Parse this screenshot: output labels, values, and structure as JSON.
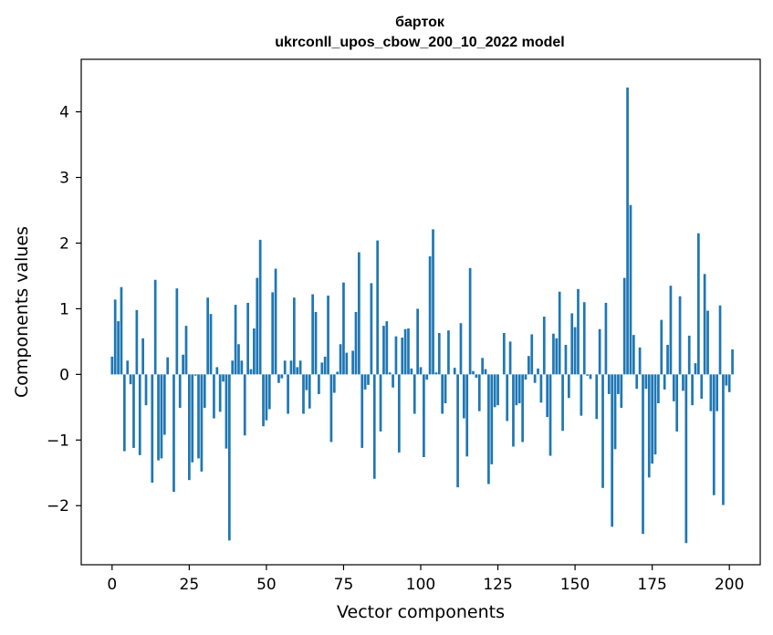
{
  "chart_data": {
    "type": "bar",
    "title": "бартокukrconll_upos_cbow_200_10_2022 model",
    "title_lines": [
      "барток",
      "ukrconll_upos_cbow_200_10_2022 model"
    ],
    "xlabel": "Vector components",
    "ylabel": "Components values",
    "xlim": [
      -10,
      210
    ],
    "ylim": [
      -2.9,
      4.8
    ],
    "xticks": [
      0,
      25,
      50,
      75,
      100,
      125,
      150,
      175,
      200
    ],
    "yticks": [
      -2,
      -1,
      0,
      1,
      2,
      3,
      4
    ],
    "ytick_labels": [
      "−2",
      "−1",
      "0",
      "1",
      "2",
      "3",
      "4"
    ],
    "bar_color": "#1f77b4",
    "grid": false,
    "values": [
      0.27,
      1.14,
      0.81,
      1.33,
      -1.17,
      0.21,
      -0.15,
      -1.12,
      0.98,
      -1.23,
      0.55,
      -0.47,
      0.0,
      -1.65,
      1.44,
      -1.31,
      -1.28,
      -0.92,
      0.26,
      0.0,
      -1.79,
      1.31,
      -0.51,
      0.3,
      0.74,
      -1.61,
      -1.34,
      -0.02,
      -1.28,
      -1.48,
      -0.51,
      1.17,
      0.92,
      -0.67,
      0.11,
      -0.57,
      -0.11,
      -1.13,
      -2.53,
      0.21,
      1.06,
      0.46,
      0.21,
      -0.93,
      1.09,
      0.08,
      0.7,
      1.47,
      2.05,
      -0.79,
      -0.7,
      -0.53,
      1.25,
      1.61,
      -0.13,
      -0.06,
      0.21,
      -0.6,
      0.21,
      1.17,
      0.11,
      0.21,
      -0.6,
      -0.24,
      -0.52,
      1.22,
      0.95,
      -0.3,
      0.18,
      0.27,
      1.2,
      -1.03,
      -0.28,
      0.04,
      0.46,
      1.4,
      0.33,
      0.0,
      0.36,
      0.95,
      1.86,
      -1.12,
      -0.23,
      -0.16,
      1.39,
      -1.59,
      2.04,
      -0.87,
      0.74,
      0.81,
      0.03,
      -0.2,
      0.58,
      -1.19,
      0.56,
      0.69,
      0.7,
      0.09,
      -0.6,
      1.0,
      0.11,
      -1.26,
      -0.08,
      1.8,
      2.21,
      0.03,
      0.63,
      -0.6,
      -0.44,
      0.67,
      0.0,
      0.1,
      -1.72,
      0.78,
      -0.67,
      -1.25,
      1.62,
      0.05,
      -0.05,
      -0.56,
      0.25,
      0.08,
      -1.67,
      -1.37,
      -0.5,
      -0.47,
      0.0,
      0.63,
      -0.71,
      0.5,
      -1.1,
      -0.47,
      -0.44,
      -1.03,
      -0.08,
      0.28,
      0.61,
      -0.13,
      0.09,
      -0.43,
      0.88,
      -0.65,
      -1.24,
      0.62,
      0.55,
      1.26,
      -0.86,
      0.45,
      -0.36,
      0.93,
      0.72,
      1.3,
      -0.63,
      1.1,
      -0.02,
      -0.07,
      0.0,
      -0.68,
      0.69,
      -1.73,
      1.09,
      -0.3,
      -2.32,
      -1.14,
      -0.3,
      -0.51,
      1.47,
      4.37,
      2.58,
      0.6,
      -0.22,
      0.41,
      -2.43,
      -0.22,
      -1.57,
      -1.36,
      -1.22,
      -0.44,
      0.83,
      -0.23,
      0.45,
      1.35,
      -0.41,
      -0.87,
      1.19,
      -0.25,
      -2.57,
      0.59,
      -0.47,
      0.17,
      2.15,
      -0.37,
      1.53,
      0.97,
      -0.56,
      -1.84,
      -0.56,
      1.05,
      -1.99,
      -0.17,
      -0.27,
      0.38
    ]
  }
}
